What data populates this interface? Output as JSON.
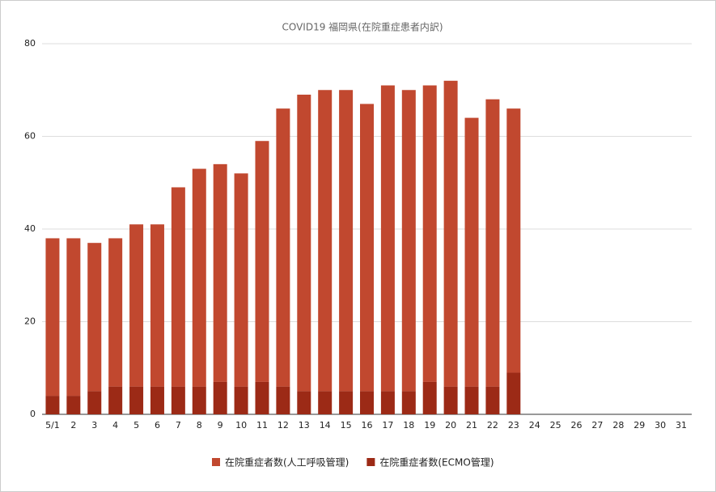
{
  "chart_data": {
    "type": "stacked_bar",
    "title": "COVID19  福岡県(在院重症患者内訳)",
    "categories": [
      "5/1",
      "2",
      "3",
      "4",
      "5",
      "6",
      "7",
      "8",
      "9",
      "10",
      "11",
      "12",
      "13",
      "14",
      "15",
      "16",
      "17",
      "18",
      "19",
      "20",
      "21",
      "22",
      "23",
      "24",
      "25",
      "26",
      "27",
      "28",
      "29",
      "30",
      "31"
    ],
    "series": [
      {
        "name": "在院重症者数(ECMO管理)",
        "color": "#9c2a16",
        "values": [
          4,
          4,
          5,
          6,
          6,
          6,
          6,
          6,
          7,
          6,
          7,
          6,
          5,
          5,
          5,
          5,
          5,
          5,
          7,
          6,
          6,
          6,
          9,
          null,
          null,
          null,
          null,
          null,
          null,
          null,
          null
        ]
      },
      {
        "name": "在院重症者数(人工呼吸管理)",
        "color": "#c1482f",
        "values": [
          34,
          34,
          32,
          32,
          35,
          35,
          43,
          47,
          47,
          46,
          52,
          60,
          64,
          65,
          65,
          62,
          66,
          65,
          64,
          66,
          58,
          62,
          57,
          null,
          null,
          null,
          null,
          null,
          null,
          null,
          null
        ]
      }
    ],
    "legend_order": [
      1,
      0
    ],
    "ylim": [
      0,
      80
    ],
    "yticks": [
      0,
      20,
      40,
      60,
      80
    ],
    "grid": true,
    "legend": "bottom"
  }
}
